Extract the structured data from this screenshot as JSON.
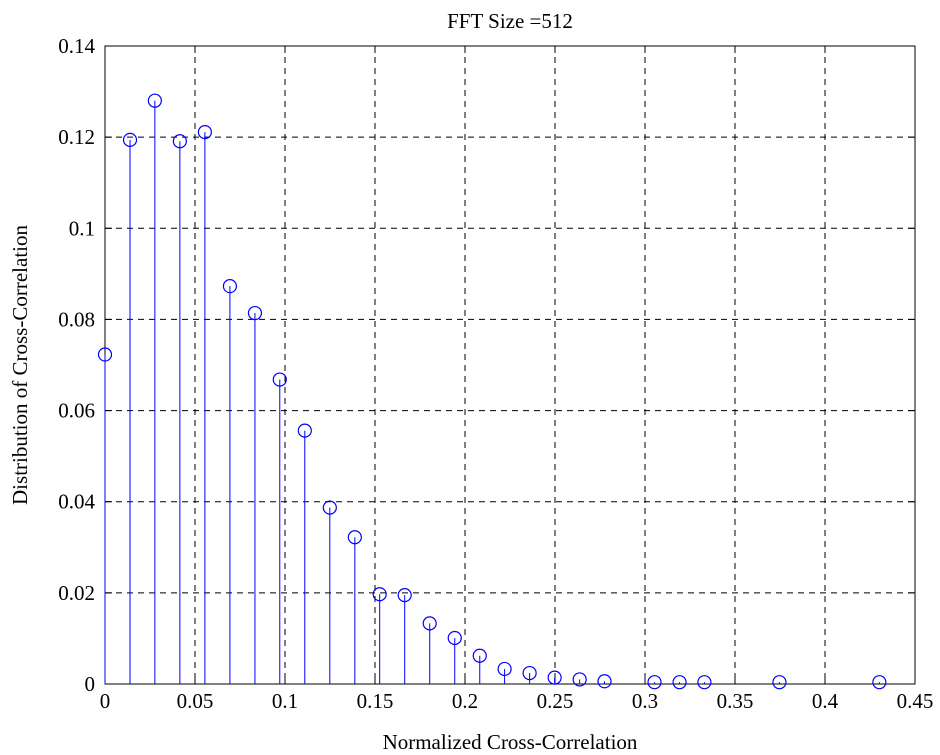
{
  "chart_data": {
    "type": "stem",
    "title": "FFT  Size =512",
    "xlabel": "Normalized Cross-Correlation",
    "ylabel": "Distribution of Cross-Correlation",
    "xlim": [
      0,
      0.45
    ],
    "ylim": [
      0,
      0.14
    ],
    "xticks": [
      0,
      0.05,
      0.1,
      0.15,
      0.2,
      0.25,
      0.3,
      0.35,
      0.4,
      0.45
    ],
    "xtick_labels": [
      "0",
      "0.05",
      "0.1",
      "0.15",
      "0.2",
      "0.25",
      "0.3",
      "0.35",
      "0.4",
      "0.45"
    ],
    "yticks": [
      0,
      0.02,
      0.04,
      0.06,
      0.08,
      0.1,
      0.12,
      0.14
    ],
    "ytick_labels": [
      "0",
      "0.02",
      "0.04",
      "0.06",
      "0.08",
      "0.1",
      "0.12",
      "0.14"
    ],
    "grid": true,
    "series": [
      {
        "color": "#0000ff",
        "marker": "circle",
        "x": [
          0.0,
          0.0139,
          0.0277,
          0.0416,
          0.0555,
          0.0694,
          0.0833,
          0.0971,
          0.111,
          0.1249,
          0.1388,
          0.1526,
          0.1665,
          0.1804,
          0.1943,
          0.2082,
          0.222,
          0.2359,
          0.2498,
          0.2637,
          0.2775,
          0.3053,
          0.3192,
          0.333,
          0.3747,
          0.4302
        ],
        "y": [
          0.0723,
          0.1194,
          0.128,
          0.1191,
          0.1211,
          0.0873,
          0.0814,
          0.0668,
          0.0556,
          0.0387,
          0.0322,
          0.0197,
          0.0195,
          0.0133,
          0.0101,
          0.0062,
          0.0033,
          0.0024,
          0.0014,
          0.001,
          0.0006,
          0.0004,
          0.0004,
          0.0004,
          0.0004,
          0.0004
        ]
      }
    ]
  }
}
